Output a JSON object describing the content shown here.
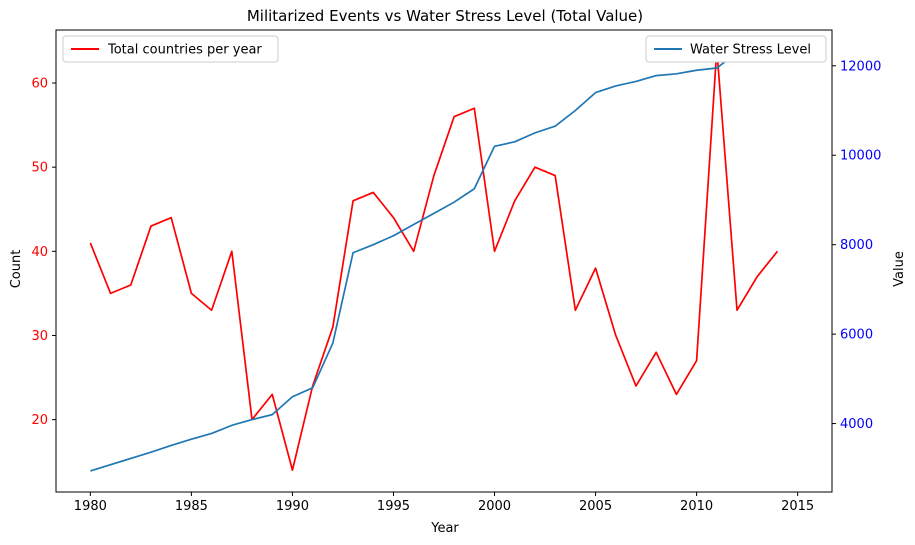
{
  "chart_data": {
    "type": "line",
    "title": "Militarized Events vs Water Stress Level (Total Value)",
    "xlabel": "Year",
    "ylabel_left": "Count",
    "ylabel_right": "Value",
    "xlim": [
      1978.3,
      2016.7
    ],
    "ylim_left": [
      11.4,
      66.3
    ],
    "ylim_right": [
      2470,
      12800
    ],
    "x_ticks": [
      1980,
      1985,
      1990,
      1995,
      2000,
      2005,
      2010,
      2015
    ],
    "y_ticks_left": [
      20,
      30,
      40,
      50,
      60
    ],
    "y_ticks_right": [
      4000,
      6000,
      8000,
      10000,
      12000
    ],
    "grid": false,
    "series": [
      {
        "name": "Total countries per year",
        "axis": "left",
        "color": "#ff0000",
        "legend_position": "upper-left",
        "x": [
          1980,
          1981,
          1982,
          1983,
          1984,
          1985,
          1986,
          1987,
          1988,
          1989,
          1990,
          1991,
          1992,
          1993,
          1994,
          1995,
          1996,
          1997,
          1998,
          1999,
          2000,
          2001,
          2002,
          2003,
          2004,
          2005,
          2006,
          2007,
          2008,
          2009,
          2010,
          2011,
          2012,
          2013,
          2014
        ],
        "values": [
          41,
          35,
          36,
          43,
          44,
          35,
          33,
          40,
          20,
          23,
          14,
          24,
          31,
          46,
          47,
          44,
          40,
          49,
          56,
          57,
          40,
          46,
          50,
          49,
          33,
          38,
          30,
          24,
          28,
          23,
          27,
          64,
          33,
          37,
          40
        ]
      },
      {
        "name": "Water Stress Level",
        "axis": "right",
        "color": "#1f77b4",
        "legend_position": "upper-right",
        "x": [
          1980,
          1981,
          1982,
          1983,
          1984,
          1985,
          1986,
          1987,
          1988,
          1989,
          1990,
          1991,
          1992,
          1993,
          1994,
          1995,
          1996,
          1997,
          1998,
          1999,
          2000,
          2001,
          2002,
          2003,
          2004,
          2005,
          2006,
          2007,
          2008,
          2009,
          2010,
          2011,
          2012,
          2013,
          2014
        ],
        "values": [
          2940,
          3080,
          3220,
          3360,
          3510,
          3650,
          3780,
          3960,
          4090,
          4200,
          4600,
          4800,
          5800,
          7820,
          8000,
          8200,
          8450,
          8700,
          8950,
          9250,
          10200,
          10300,
          10500,
          10650,
          11000,
          11400,
          11550,
          11650,
          11780,
          11820,
          11900,
          11950,
          12300,
          12360,
          12400
        ]
      }
    ]
  }
}
